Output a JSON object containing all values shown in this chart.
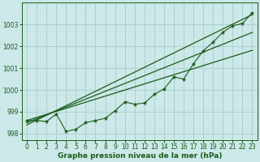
{
  "xlabel": "Graphe pression niveau de la mer (hPa)",
  "background_color": "#cce8e8",
  "grid_color": "#aacccc",
  "line_color": "#1a5c1a",
  "x_full": [
    0,
    1,
    2,
    3,
    4,
    5,
    6,
    7,
    8,
    9,
    10,
    11,
    12,
    13,
    14,
    15,
    16,
    17,
    18,
    19,
    20,
    21,
    22,
    23
  ],
  "straight1": [
    998.6,
    998.74,
    998.88,
    999.02,
    999.16,
    999.3,
    999.44,
    999.58,
    999.72,
    999.86,
    1000.0,
    1000.14,
    1000.28,
    1000.42,
    1000.56,
    1000.7,
    1000.84,
    1000.98,
    1001.12,
    1001.26,
    1001.4,
    1001.54,
    1001.68,
    1001.82
  ],
  "straight2": [
    998.5,
    998.68,
    998.86,
    999.04,
    999.22,
    999.4,
    999.58,
    999.76,
    999.94,
    1000.12,
    1000.3,
    1000.48,
    1000.66,
    1000.84,
    1001.02,
    1001.2,
    1001.38,
    1001.56,
    1001.74,
    1001.92,
    1002.1,
    1002.28,
    1002.46,
    1002.64
  ],
  "straight3": [
    998.4,
    998.62,
    998.84,
    999.06,
    999.28,
    999.5,
    999.72,
    999.94,
    1000.16,
    1000.38,
    1000.6,
    1000.82,
    1001.04,
    1001.26,
    1001.48,
    1001.7,
    1001.92,
    1002.14,
    1002.36,
    1002.58,
    1002.8,
    1003.02,
    1003.24,
    1003.46
  ],
  "wiggly_x": [
    0,
    1,
    2,
    3,
    4,
    5,
    6,
    7,
    8,
    9,
    10,
    11,
    12,
    13,
    14,
    15,
    16,
    17,
    18,
    19,
    20,
    21,
    22,
    23
  ],
  "wiggly_y": [
    998.6,
    998.6,
    998.55,
    998.9,
    998.1,
    998.2,
    998.5,
    998.6,
    998.7,
    999.05,
    999.45,
    999.35,
    999.4,
    999.8,
    1000.05,
    1000.6,
    1000.5,
    1001.2,
    1001.8,
    1002.2,
    1002.65,
    1002.95,
    1003.05,
    1003.55
  ],
  "ylim": [
    997.7,
    1004.0
  ],
  "yticks": [
    998,
    999,
    1000,
    1001,
    1002,
    1003
  ],
  "xticks": [
    0,
    1,
    2,
    3,
    4,
    5,
    6,
    7,
    8,
    9,
    10,
    11,
    12,
    13,
    14,
    15,
    16,
    17,
    18,
    19,
    20,
    21,
    22,
    23
  ],
  "xlabel_fontsize": 6.5,
  "tick_fontsize": 5.5
}
